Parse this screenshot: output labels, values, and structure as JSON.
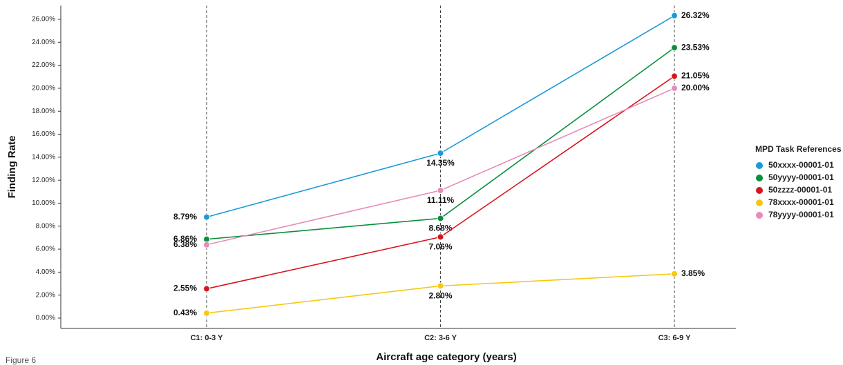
{
  "chart_data": {
    "type": "line",
    "caption": "Figure 6",
    "xlabel": "Aircraft age category (years)",
    "ylabel": "Finding Rate",
    "legend_title": "MPD Task References",
    "legend": "right",
    "categories": [
      "C1: 0-3 Y",
      "C2: 3-6 Y",
      "C3: 6-9 Y"
    ],
    "ylim": [
      -0.9,
      27.2
    ],
    "yticks": [
      {
        "value": 0,
        "label": "0.00%"
      },
      {
        "value": 2,
        "label": "2.00%"
      },
      {
        "value": 4,
        "label": "4.00%"
      },
      {
        "value": 6,
        "label": "6.00%"
      },
      {
        "value": 8,
        "label": "8.00%"
      },
      {
        "value": 10,
        "label": "10.00%"
      },
      {
        "value": 12,
        "label": "12.00%"
      },
      {
        "value": 14,
        "label": "14.00%"
      },
      {
        "value": 16,
        "label": "16.00%"
      },
      {
        "value": 18,
        "label": "18.00%"
      },
      {
        "value": 20,
        "label": "20.00%"
      },
      {
        "value": 22,
        "label": "22.00%"
      },
      {
        "value": 24,
        "label": "24.00%"
      },
      {
        "value": 26,
        "label": "26.00%"
      }
    ],
    "series": [
      {
        "name": "50xxxx-00001-01",
        "color": "#1a9ad6",
        "values": [
          8.79,
          14.35,
          26.32
        ],
        "value_labels": [
          "8.79%",
          "14.35%",
          "26.32%"
        ]
      },
      {
        "name": "50yyyy-00001-01",
        "color": "#0a8f3c",
        "values": [
          6.86,
          8.68,
          23.53
        ],
        "value_labels": [
          "6.86%",
          "8.68%",
          "23.53%"
        ]
      },
      {
        "name": "50zzzz-00001-01",
        "color": "#d9141c",
        "values": [
          2.55,
          7.06,
          21.05
        ],
        "value_labels": [
          "2.55%",
          "7.06%",
          "21.05%"
        ]
      },
      {
        "name": "78xxxx-00001-01",
        "color": "#f6c812",
        "values": [
          0.43,
          2.8,
          3.85
        ],
        "value_labels": [
          "0.43%",
          "2.80%",
          "3.85%"
        ]
      },
      {
        "name": "78yyyy-00001-01",
        "color": "#e88bb9",
        "values": [
          6.38,
          11.11,
          20.0
        ],
        "value_labels": [
          "6.38%",
          "11.11%",
          "20.00%"
        ]
      }
    ]
  }
}
